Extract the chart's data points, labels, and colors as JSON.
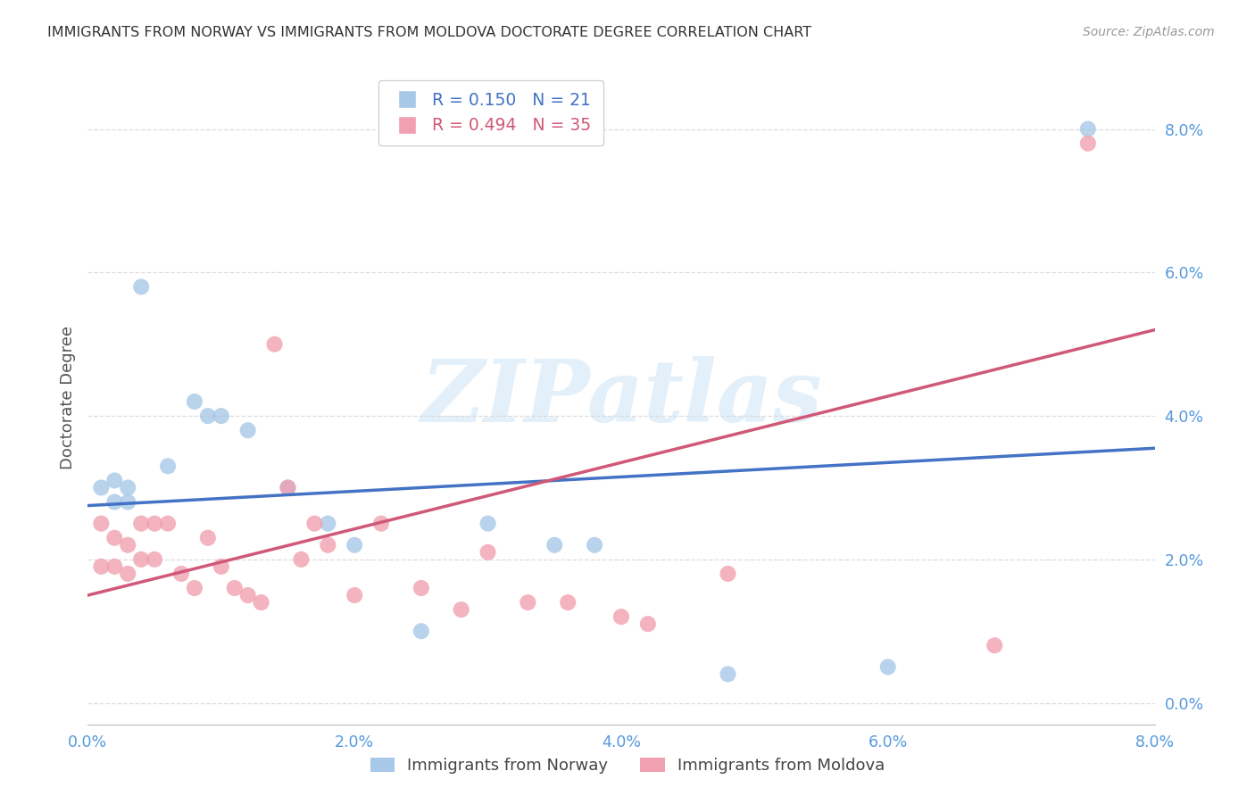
{
  "title": "IMMIGRANTS FROM NORWAY VS IMMIGRANTS FROM MOLDOVA DOCTORATE DEGREE CORRELATION CHART",
  "source": "Source: ZipAtlas.com",
  "ylabel_label": "Doctorate Degree",
  "xlim": [
    0.0,
    0.08
  ],
  "ylim": [
    -0.003,
    0.088
  ],
  "norway_color": "#A8C8E8",
  "moldova_color": "#F0A0B0",
  "norway_line_color": "#4472C4",
  "moldova_line_color": "#D05878",
  "norway_R": 0.15,
  "norway_N": 21,
  "moldova_R": 0.494,
  "moldova_N": 35,
  "norway_line_y0": 0.0275,
  "norway_line_y1": 0.0355,
  "moldova_line_y0": 0.015,
  "moldova_line_y1": 0.052,
  "watermark_text": "ZIPatlas",
  "background_color": "#FFFFFF",
  "grid_color": "#DDDDDD",
  "tick_color": "#5599DD",
  "norway_x": [
    0.001,
    0.002,
    0.002,
    0.003,
    0.003,
    0.004,
    0.006,
    0.008,
    0.009,
    0.01,
    0.012,
    0.015,
    0.018,
    0.02,
    0.025,
    0.03,
    0.035,
    0.038,
    0.048,
    0.06,
    0.075
  ],
  "norway_y": [
    0.03,
    0.031,
    0.028,
    0.03,
    0.028,
    0.058,
    0.033,
    0.042,
    0.04,
    0.04,
    0.038,
    0.03,
    0.025,
    0.022,
    0.01,
    0.025,
    0.022,
    0.022,
    0.004,
    0.005,
    0.08
  ],
  "moldova_x": [
    0.001,
    0.001,
    0.002,
    0.002,
    0.003,
    0.003,
    0.004,
    0.004,
    0.005,
    0.005,
    0.006,
    0.007,
    0.008,
    0.009,
    0.01,
    0.011,
    0.012,
    0.013,
    0.014,
    0.015,
    0.016,
    0.017,
    0.018,
    0.02,
    0.022,
    0.025,
    0.028,
    0.03,
    0.033,
    0.036,
    0.04,
    0.042,
    0.048,
    0.068,
    0.075
  ],
  "moldova_y": [
    0.025,
    0.019,
    0.019,
    0.023,
    0.022,
    0.018,
    0.02,
    0.025,
    0.025,
    0.02,
    0.025,
    0.018,
    0.016,
    0.023,
    0.019,
    0.016,
    0.015,
    0.014,
    0.05,
    0.03,
    0.02,
    0.025,
    0.022,
    0.015,
    0.025,
    0.016,
    0.013,
    0.021,
    0.014,
    0.014,
    0.012,
    0.011,
    0.018,
    0.008,
    0.078
  ]
}
